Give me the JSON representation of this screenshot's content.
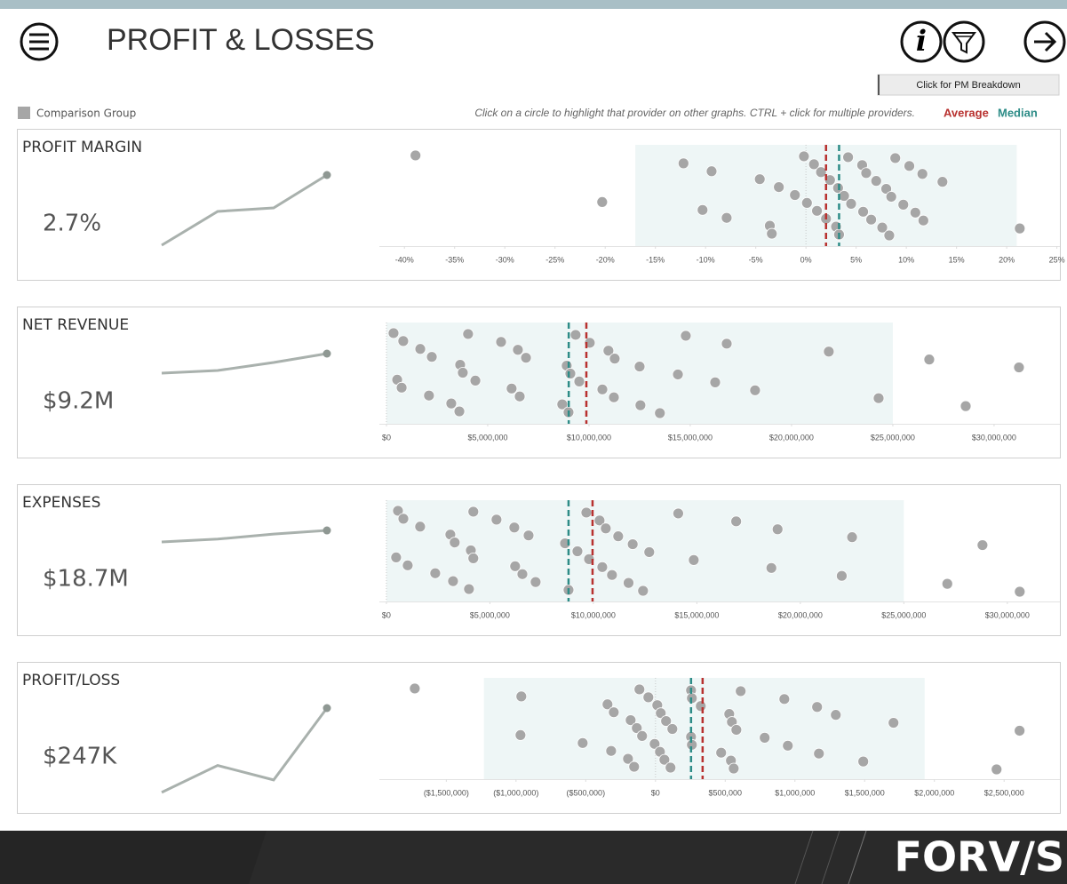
{
  "header": {
    "title": "PROFIT & LOSSES",
    "button": "Click for PM Breakdown"
  },
  "legend": {
    "comparison": "Comparison Group",
    "instructions": "Click on a circle to highlight that provider on other graphs. CTRL + click for multiple providers.",
    "average": "Average",
    "median": "Median",
    "comparison_color": "#a6a6a6",
    "average_color": "#b8312f",
    "median_color": "#2d8c87"
  },
  "chart_data": [
    {
      "type": "strip",
      "title": "PROFIT MARGIN",
      "kpi": {
        "value": 2.7,
        "label": "2.7%"
      },
      "trend": [
        -1.25,
        0.65,
        0.85
      ],
      "trend_ylim": [
        -2.2,
        3.3
      ],
      "xlim": [
        -42.5,
        25.3
      ],
      "xticks": [
        {
          "value": -40,
          "label": "-40%"
        },
        {
          "value": -35,
          "label": "-35%"
        },
        {
          "value": -30,
          "label": "-30%"
        },
        {
          "value": -25,
          "label": "-25%"
        },
        {
          "value": -20,
          "label": "-20%"
        },
        {
          "value": -15,
          "label": "-15%"
        },
        {
          "value": -10,
          "label": "-10%"
        },
        {
          "value": -5,
          "label": "-5%"
        },
        {
          "value": 0,
          "label": "0%"
        },
        {
          "value": 5,
          "label": "5%"
        },
        {
          "value": 10,
          "label": "10%"
        },
        {
          "value": 15,
          "label": "15%"
        },
        {
          "value": 20,
          "label": "20%"
        },
        {
          "value": 25,
          "label": "25%"
        }
      ],
      "band": [
        -17,
        21
      ],
      "average": 2.0,
      "median": 3.3,
      "color": "#a6a6a6",
      "band_color": "#eef6f6",
      "values": [
        -38.9,
        -20.3,
        -12.2,
        -10.3,
        -9.4,
        -7.9,
        -4.6,
        -3.6,
        -2.7,
        -3.4,
        -1.1,
        -0.2,
        0.1,
        0.8,
        1.1,
        1.5,
        2.0,
        2.4,
        3.0,
        3.2,
        3.3,
        3.8,
        4.2,
        4.5,
        5.6,
        5.7,
        6.0,
        6.5,
        7.0,
        7.6,
        8.0,
        8.3,
        8.5,
        8.9,
        9.7,
        10.3,
        10.9,
        11.6,
        11.7,
        13.6,
        21.3
      ]
    },
    {
      "type": "strip",
      "title": "NET REVENUE",
      "kpi": {
        "value": 9200000,
        "label": "$9.2M"
      },
      "trend": [
        8100000,
        8250000,
        8700000
      ],
      "trend_ylim": [
        4350000,
        9850000
      ],
      "xlim": [
        -350000,
        33250000
      ],
      "xticks": [
        {
          "value": 0,
          "label": "$0"
        },
        {
          "value": 5000000,
          "label": "$5,000,000"
        },
        {
          "value": 10000000,
          "label": "$10,000,000"
        },
        {
          "value": 15000000,
          "label": "$15,000,000"
        },
        {
          "value": 20000000,
          "label": "$20,000,000"
        },
        {
          "value": 25000000,
          "label": "$25,000,000"
        },
        {
          "value": 30000000,
          "label": "$30,000,000"
        }
      ],
      "band": [
        0,
        25000000
      ],
      "average": 9870000,
      "median": 9000000,
      "color": "#a6a6a6",
      "band_color": "#eef6f6",
      "values": [
        350000,
        530000,
        830000,
        750000,
        1670000,
        2100000,
        2240000,
        3200000,
        3640000,
        3600000,
        3770000,
        4030000,
        4390000,
        5660000,
        6180000,
        6490000,
        6580000,
        6890000,
        8680000,
        8900000,
        8990000,
        9080000,
        9340000,
        9520000,
        10040000,
        10660000,
        10960000,
        11230000,
        11270000,
        12540000,
        12500000,
        13500000,
        14390000,
        14780000,
        16230000,
        16800000,
        18200000,
        21840000,
        24300000,
        26800000,
        28600000,
        31230000
      ]
    },
    {
      "type": "strip",
      "title": "EXPENSES",
      "kpi": {
        "value": 18700000,
        "label": "$18.7M"
      },
      "trend": [
        17900000,
        18100000,
        18450000
      ],
      "trend_ylim": [
        12670000,
        19440000
      ],
      "xlim": [
        -340000,
        32540000
      ],
      "xticks": [
        {
          "value": 0,
          "label": "$0"
        },
        {
          "value": 5000000,
          "label": "$5,000,000"
        },
        {
          "value": 10000000,
          "label": "$10,000,000"
        },
        {
          "value": 15000000,
          "label": "$15,000,000"
        },
        {
          "value": 20000000,
          "label": "$20,000,000"
        },
        {
          "value": 25000000,
          "label": "$25,000,000"
        },
        {
          "value": 30000000,
          "label": "$30,000,000"
        }
      ],
      "band": [
        0,
        25000000
      ],
      "average": 9960000,
      "median": 8800000,
      "color": "#a6a6a6",
      "band_color": "#eef6f6",
      "values": [
        560000,
        470000,
        820000,
        1030000,
        1630000,
        2360000,
        3090000,
        3220000,
        3300000,
        3990000,
        4080000,
        4200000,
        4200000,
        5320000,
        6220000,
        6180000,
        6570000,
        6870000,
        7210000,
        8630000,
        8800000,
        9230000,
        9660000,
        9790000,
        10300000,
        10430000,
        10600000,
        10900000,
        11200000,
        11700000,
        11900000,
        12400000,
        12700000,
        14100000,
        14850000,
        16900000,
        18600000,
        18900000,
        22000000,
        22500000,
        27100000,
        28800000,
        30600000
      ]
    },
    {
      "type": "strip",
      "title": "PROFIT/LOSS",
      "kpi": {
        "value": 247000,
        "label": "$247K"
      },
      "trend": [
        -160000,
        -30000,
        -100000
      ],
      "trend_ylim": [
        -173500,
        298500
      ],
      "xlim": [
        -1980000,
        2900000
      ],
      "xticks": [
        {
          "value": -1500000,
          "label": "($1,500,000)"
        },
        {
          "value": -1000000,
          "label": "($1,000,000)"
        },
        {
          "value": -500000,
          "label": "($500,000)"
        },
        {
          "value": 0,
          "label": "$0"
        },
        {
          "value": 500000,
          "label": "$500,000"
        },
        {
          "value": 1000000,
          "label": "$1,000,000"
        },
        {
          "value": 1500000,
          "label": "$1,500,000"
        },
        {
          "value": 2000000,
          "label": "$2,000,000"
        },
        {
          "value": 2500000,
          "label": "$2,500,000"
        }
      ],
      "band": [
        -1230000,
        1930000
      ],
      "average": 338000,
      "median": 255000,
      "color": "#a6a6a6",
      "band_color": "#eef6f6",
      "values": [
        -1726000,
        -968000,
        -962000,
        -522000,
        -344000,
        -318000,
        -299000,
        -197000,
        -178000,
        -153000,
        -134000,
        -115000,
        -96000,
        -51000,
        -6000,
        13000,
        32000,
        38000,
        64000,
        76000,
        108000,
        121000,
        255000,
        255000,
        261000,
        261000,
        325000,
        471000,
        529000,
        541000,
        548000,
        561000,
        580000,
        611000,
        783000,
        924000,
        949000,
        1159000,
        1172000,
        1293000,
        1490000,
        1707000,
        2446000,
        2611000
      ]
    }
  ],
  "footer": {
    "brand": "FORV/S"
  }
}
